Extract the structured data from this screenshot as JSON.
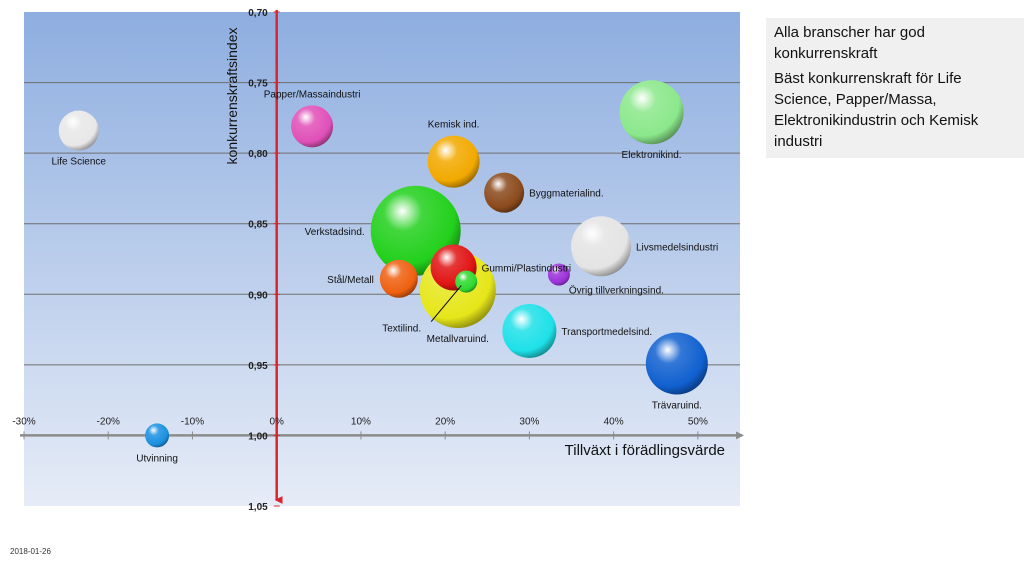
{
  "info": {
    "line1": "Alla branscher har god konkurrenskraft",
    "line2": "Bäst konkurrenskraft för Life Science, Papper/Massa, Elektronikindustrin och Kemisk industri"
  },
  "footer": {
    "date": "2018-01-26"
  },
  "chart_data": {
    "type": "scatter",
    "subtype": "bubble",
    "xlabel": "Tillväxt i förädlingsvärde",
    "ylabel": "konkurrenskraftsindex",
    "xlim": [
      -0.3,
      0.55
    ],
    "ylim": [
      0.7,
      1.05
    ],
    "y_inverted": true,
    "x_ticks": [
      {
        "value": -0.3,
        "label": "-30%"
      },
      {
        "value": -0.2,
        "label": "-20%"
      },
      {
        "value": -0.1,
        "label": "-10%"
      },
      {
        "value": 0.0,
        "label": "0%"
      },
      {
        "value": 0.1,
        "label": "10%"
      },
      {
        "value": 0.2,
        "label": "20%"
      },
      {
        "value": 0.3,
        "label": "30%"
      },
      {
        "value": 0.4,
        "label": "40%"
      },
      {
        "value": 0.5,
        "label": "50%"
      }
    ],
    "y_ticks": [
      {
        "value": 0.7,
        "label": "0,70"
      },
      {
        "value": 0.75,
        "label": "0,75"
      },
      {
        "value": 0.8,
        "label": "0,80"
      },
      {
        "value": 0.85,
        "label": "0,85"
      },
      {
        "value": 0.9,
        "label": "0,90"
      },
      {
        "value": 0.95,
        "label": "0,95"
      },
      {
        "value": 1.0,
        "label": "1,00"
      },
      {
        "value": 1.05,
        "label": "1,05"
      }
    ],
    "grid": true,
    "axis_crossing": {
      "x_at_y": 1.0,
      "y_at_x": 0.0
    },
    "background": {
      "top": "#8eaee0",
      "bottom": "#e6ecf7"
    },
    "colors": {
      "x_axis": "#8c8c8c",
      "y_axis": "#d9262b",
      "grid": "#6f6f6f"
    },
    "points": [
      {
        "name": "Life Science",
        "x": -0.235,
        "y": 0.784,
        "size": 20,
        "color": "#e8e8e8",
        "label_pos": "below"
      },
      {
        "name": "Papper/Massaindustri",
        "x": 0.042,
        "y": 0.781,
        "size": 21,
        "color": "#e050b8",
        "label_pos": "above"
      },
      {
        "name": "Kemisk ind.",
        "x": 0.21,
        "y": 0.806,
        "size": 26,
        "color": "#f2a900",
        "label_pos": "above"
      },
      {
        "name": "Elektronikind.",
        "x": 0.445,
        "y": 0.771,
        "size": 32,
        "color": "#8be88b",
        "label_pos": "below"
      },
      {
        "name": "Byggmaterialind.",
        "x": 0.27,
        "y": 0.828,
        "size": 20,
        "color": "#8b4a1c",
        "label_pos": "right"
      },
      {
        "name": "Verkstadsind.",
        "x": 0.165,
        "y": 0.855,
        "size": 45,
        "color": "#22d01c",
        "label_pos": "left"
      },
      {
        "name": "Metallvaruind.",
        "x": 0.215,
        "y": 0.897,
        "size": 38,
        "color": "#e6e61a",
        "label_pos": "below"
      },
      {
        "name": "Gummi/Plastindustri",
        "x": 0.21,
        "y": 0.881,
        "size": 23,
        "color": "#e01414",
        "label_pos": "right"
      },
      {
        "name": "Textilind.",
        "x": 0.225,
        "y": 0.891,
        "size": 11,
        "color": "#2fd92f",
        "label_pos": "callout"
      },
      {
        "name": "Stål/Metall",
        "x": 0.145,
        "y": 0.889,
        "size": 19,
        "color": "#ee6010",
        "label_pos": "left"
      },
      {
        "name": "Livsmedelsindustri",
        "x": 0.385,
        "y": 0.866,
        "size": 30,
        "color": "#e4e4e4",
        "label_pos": "right"
      },
      {
        "name": "Övrig tillverkningsind.",
        "x": 0.335,
        "y": 0.886,
        "size": 11,
        "color": "#9b32d9",
        "label_pos": "below-right"
      },
      {
        "name": "Transportmedelsind.",
        "x": 0.3,
        "y": 0.926,
        "size": 27,
        "color": "#1ee0e8",
        "label_pos": "right"
      },
      {
        "name": "Trävaruind.",
        "x": 0.475,
        "y": 0.949,
        "size": 31,
        "color": "#1060d0",
        "label_pos": "below"
      },
      {
        "name": "Utvinning",
        "x": -0.142,
        "y": 1.0,
        "size": 12,
        "color": "#1a90e0",
        "label_pos": "below"
      }
    ]
  }
}
